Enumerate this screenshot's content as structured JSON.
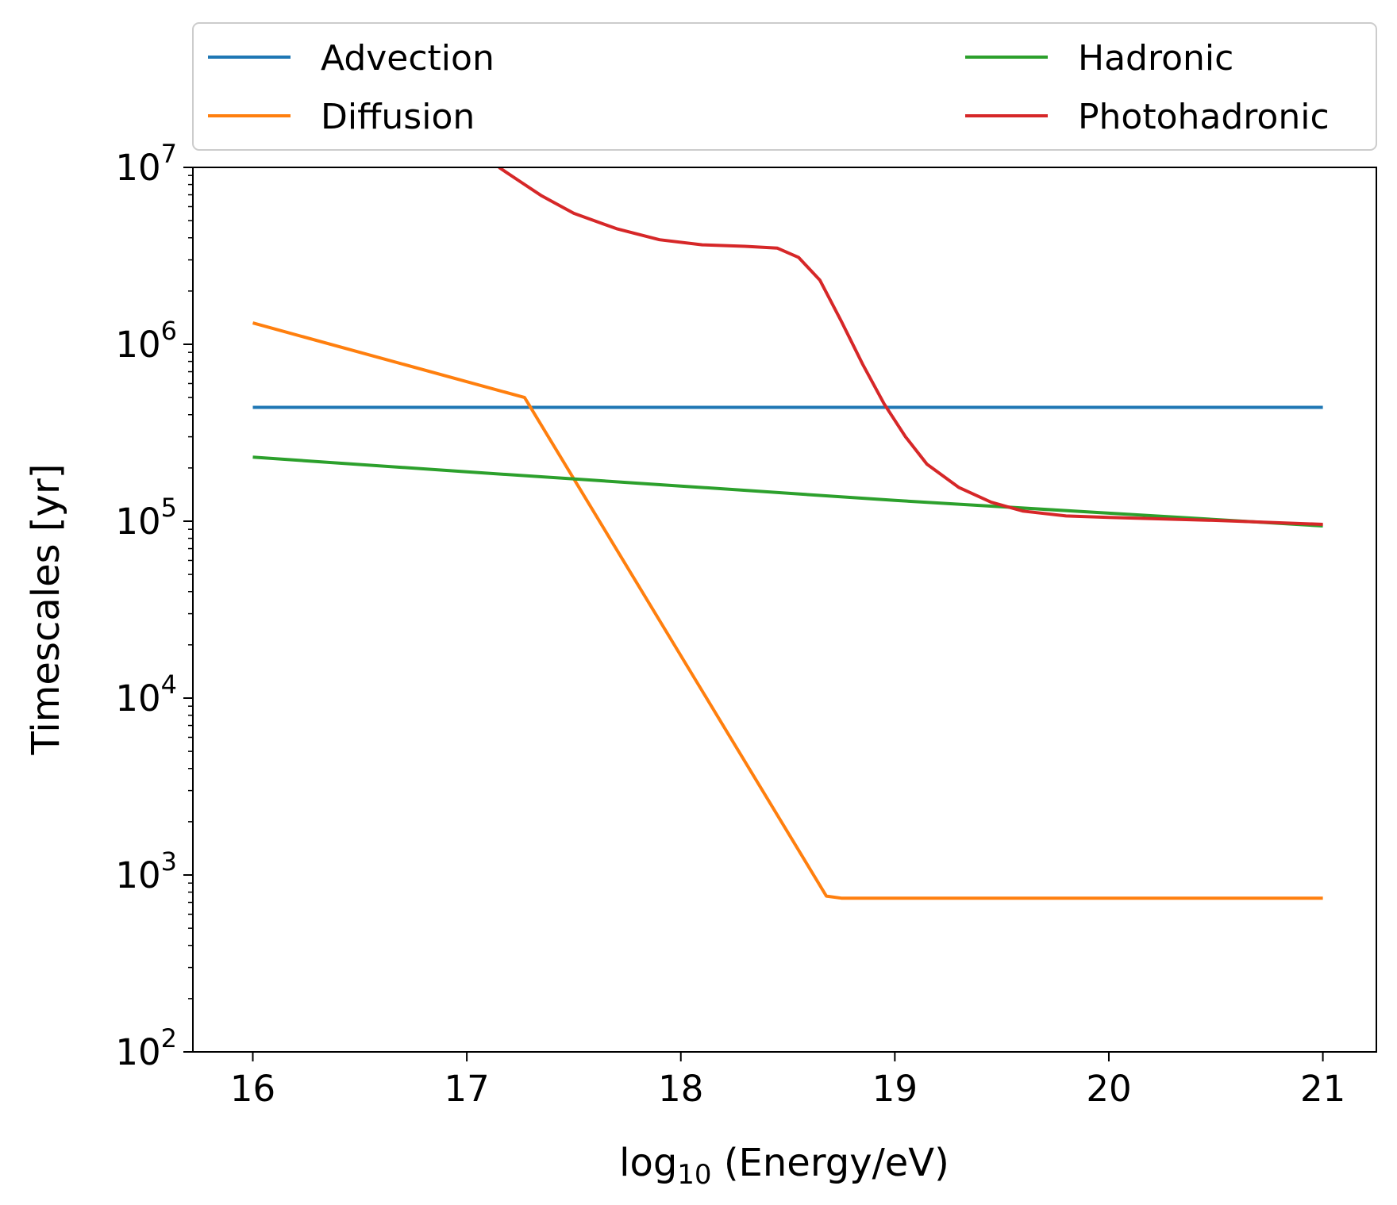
{
  "chart_data": {
    "type": "line",
    "title": "",
    "xlabel": {
      "prefix": "log",
      "sub": "10",
      "suffix": " (Energy/eV)"
    },
    "ylabel": "Timescales [yr]",
    "xlim": [
      15.72,
      21.25
    ],
    "ylim": [
      100,
      10000000
    ],
    "yscale": "log",
    "x_ticks": [
      16,
      17,
      18,
      19,
      20,
      21
    ],
    "x_tick_labels": [
      "16",
      "17",
      "18",
      "19",
      "20",
      "21"
    ],
    "y_ticks": [
      100,
      1000,
      10000,
      100000,
      1000000,
      10000000
    ],
    "y_tick_labels": [
      {
        "base": "10",
        "exp": "2"
      },
      {
        "base": "10",
        "exp": "3"
      },
      {
        "base": "10",
        "exp": "4"
      },
      {
        "base": "10",
        "exp": "5"
      },
      {
        "base": "10",
        "exp": "6"
      },
      {
        "base": "10",
        "exp": "7"
      }
    ],
    "grid": false,
    "legend": {
      "position": "top-outside",
      "columns": 2
    },
    "series": [
      {
        "name": "Advection",
        "color": "#1f77b4",
        "x": [
          16,
          21
        ],
        "y": [
          440000,
          440000
        ]
      },
      {
        "name": "Diffusion",
        "color": "#ff7f0e",
        "x": [
          16,
          17.27,
          18.68,
          18.75,
          21
        ],
        "y": [
          1320000,
          500000,
          760,
          740,
          740
        ]
      },
      {
        "name": "Hadronic",
        "color": "#2ca02c",
        "x": [
          16,
          17,
          18,
          19,
          20,
          21
        ],
        "y": [
          230000,
          190000,
          158000,
          131000,
          111000,
          94000
        ]
      },
      {
        "name": "Photohadronic",
        "color": "#d62728",
        "x": [
          17.15,
          17.25,
          17.35,
          17.5,
          17.7,
          17.9,
          18.1,
          18.3,
          18.45,
          18.55,
          18.65,
          18.75,
          18.85,
          18.95,
          19.05,
          19.15,
          19.3,
          19.45,
          19.6,
          19.8,
          20.0,
          20.5,
          21.0
        ],
        "y": [
          10000000,
          8300000,
          6900000,
          5500000,
          4500000,
          3900000,
          3650000,
          3580000,
          3500000,
          3100000,
          2300000,
          1350000,
          770000,
          460000,
          300000,
          210000,
          155000,
          128000,
          114000,
          107000,
          105000,
          101000,
          96000
        ]
      }
    ]
  }
}
